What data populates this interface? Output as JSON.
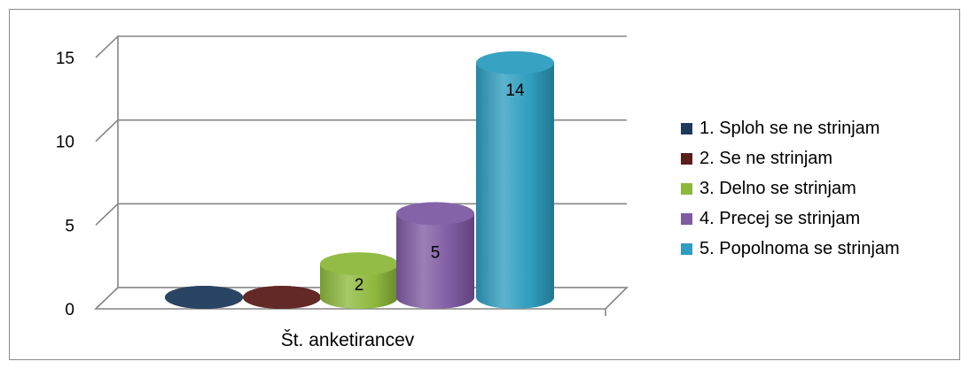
{
  "chart_data": {
    "type": "bar",
    "style": "3d-cylinder",
    "categories": [
      "Št. anketirancev"
    ],
    "series": [
      {
        "name": "1. Sploh se ne strinjam",
        "values": [
          0
        ],
        "color": "#1F3A5B"
      },
      {
        "name": "2. Se ne strinjam",
        "values": [
          0
        ],
        "color": "#5A1E1C"
      },
      {
        "name": "3. Delno se strinjam",
        "values": [
          2
        ],
        "color": "#8DB83C"
      },
      {
        "name": "4. Precej se strinjam",
        "values": [
          5
        ],
        "color": "#7F5BA3"
      },
      {
        "name": "5. Popolnoma se strinjam",
        "values": [
          14
        ],
        "color": "#2E9DBF"
      }
    ],
    "data_labels": [
      "",
      "",
      "2",
      "5",
      "14"
    ],
    "yticks": [
      "0",
      "5",
      "10",
      "15"
    ],
    "ylim": [
      0,
      15
    ],
    "grid": true,
    "legend_position": "right",
    "title": "",
    "xlabel": "",
    "ylabel": ""
  }
}
